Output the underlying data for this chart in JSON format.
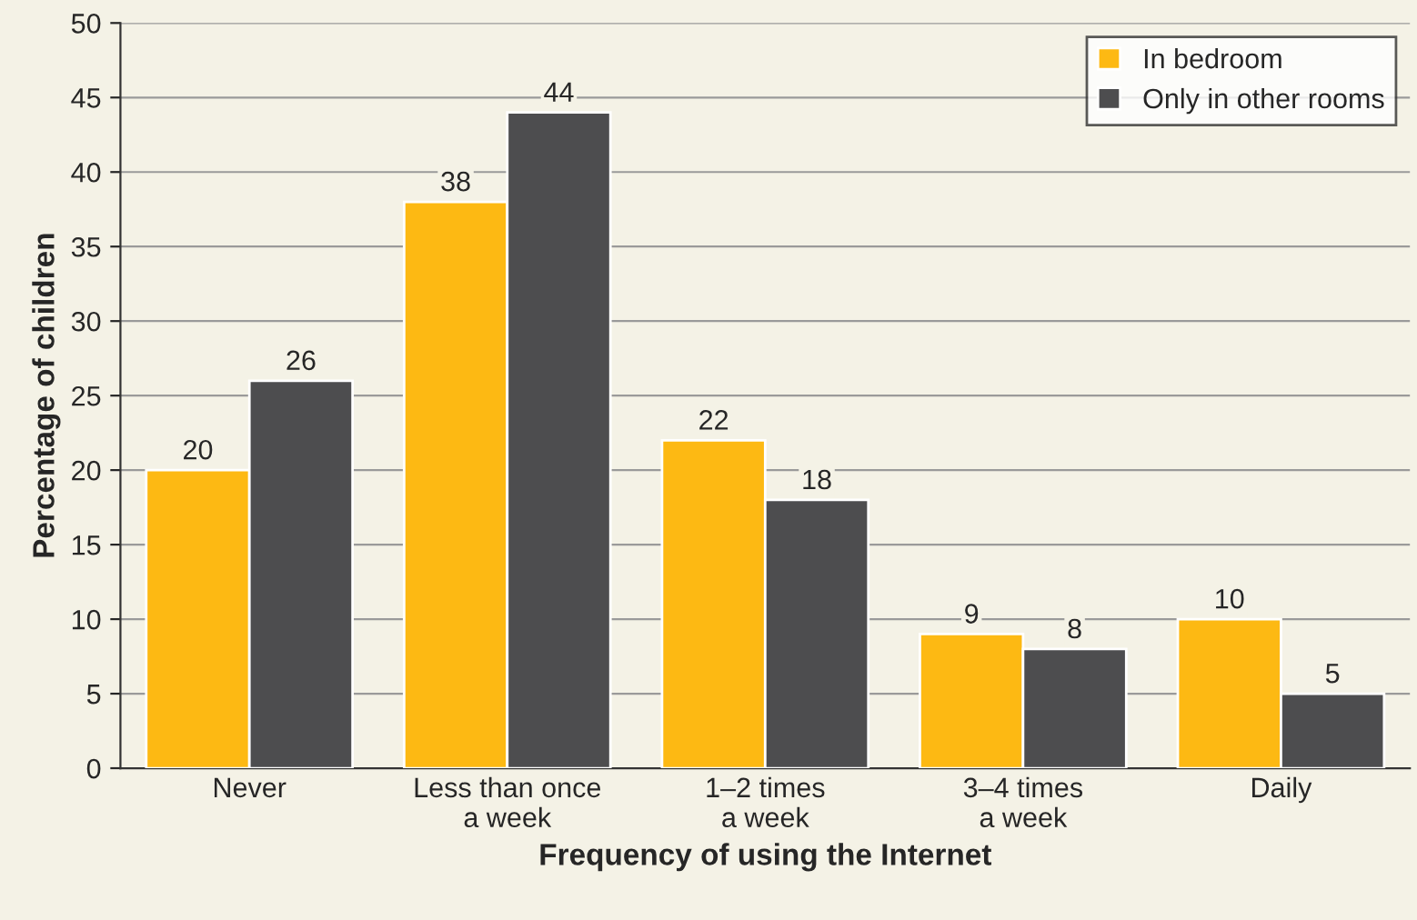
{
  "chart_data": {
    "type": "bar",
    "xlabel": "Frequency of using the Internet",
    "ylabel": "Percentage of children",
    "categories": [
      "Never",
      "Less than once\na week",
      "1–2 times\na week",
      "3–4 times\na week",
      "Daily"
    ],
    "series": [
      {
        "name": "In bedroom",
        "color": "#fdb913",
        "values": [
          20,
          38,
          22,
          9,
          10
        ]
      },
      {
        "name": "Only in other rooms",
        "color": "#4d4d4f",
        "values": [
          26,
          44,
          18,
          8,
          5
        ]
      }
    ],
    "ylim": [
      0,
      50
    ],
    "yticks": [
      0,
      5,
      10,
      15,
      20,
      25,
      30,
      35,
      40,
      45,
      50
    ],
    "grid": "y",
    "legend": "top right",
    "data_labels": true
  }
}
